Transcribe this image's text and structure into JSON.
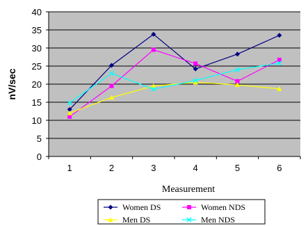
{
  "chart_data": {
    "type": "line",
    "title": "",
    "xlabel": "Measurement",
    "ylabel": "nV/sec",
    "categories": [
      "1",
      "2",
      "3",
      "4",
      "5",
      "6"
    ],
    "ylim": [
      0,
      40
    ],
    "yticks": [
      "0",
      "5",
      "10",
      "15",
      "20",
      "25",
      "30",
      "35",
      "40"
    ],
    "grid": true,
    "plot_background": "#c0c0c0",
    "legend_position": "bottom",
    "series": [
      {
        "name": "Women DS",
        "color": "#000080",
        "marker": "diamond",
        "values": [
          13,
          25.2,
          33.8,
          24.2,
          28.3,
          33.5
        ]
      },
      {
        "name": "Women NDS",
        "color": "#ff00ff",
        "marker": "square",
        "values": [
          11,
          19.5,
          29.5,
          25.7,
          20.8,
          26.7
        ]
      },
      {
        "name": "Men DS",
        "color": "#ffff00",
        "marker": "triangle",
        "values": [
          12,
          16.3,
          19.5,
          20.5,
          19.8,
          18.7
        ]
      },
      {
        "name": "Men NDS",
        "color": "#00ffff",
        "marker": "x",
        "values": [
          14.8,
          23,
          18.6,
          21,
          24,
          25.8
        ]
      }
    ]
  }
}
